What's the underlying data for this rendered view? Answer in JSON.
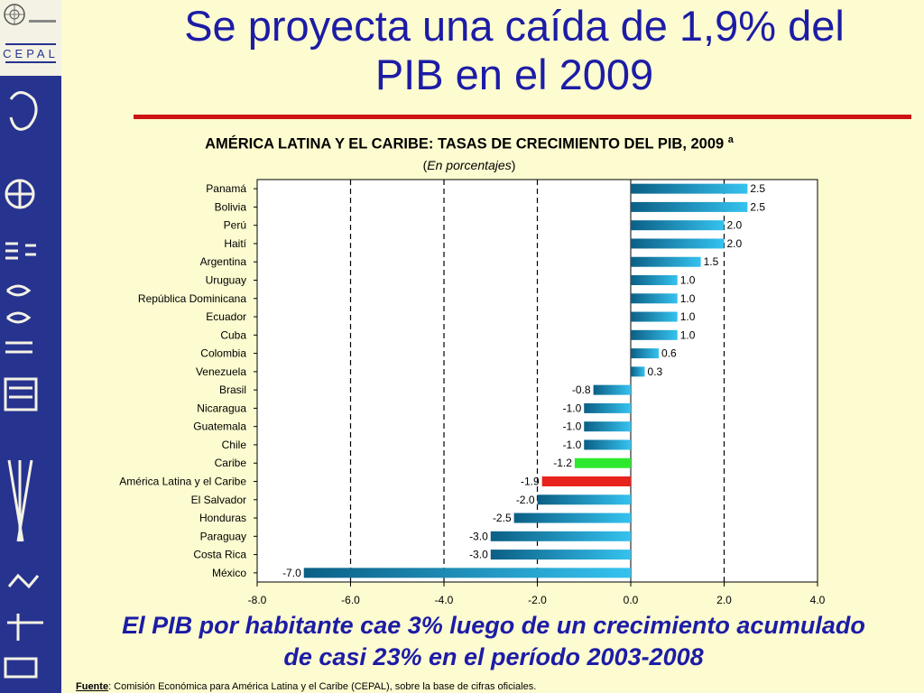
{
  "slide": {
    "title_line1": "Se proyecta una caída de 1,9% del",
    "title_line2": "PIB en el 2009",
    "footer_line1": "El PIB por habitante cae 3% luego de un crecimiento acumulado",
    "footer_line2": "de casi 23% en el período 2003-2008",
    "source_label": "Fuente",
    "source_text": ": Comisión Económica para América Latina y el Caribe (CEPAL), sobre la base de cifras oficiales."
  },
  "colors": {
    "title": "#1c1ca6",
    "rule": "#cc1212",
    "sidebar": "#26338f",
    "bar_dark": "#0b5f85",
    "bar_light": "#35c2ef",
    "bar_caribe": "#2ee82e",
    "bar_region": "#e8221c"
  },
  "chart_data": {
    "type": "bar",
    "orientation": "horizontal",
    "title": "AMÉRICA LATINA Y EL CARIBE: TASAS DE CRECIMIENTO DEL PIB, 2009",
    "title_superscript": "a",
    "subtitle_open": "(",
    "subtitle_italic": "En porcentajes",
    "subtitle_close": ")",
    "categories": [
      "Panamá",
      "Bolivia",
      "Perú",
      "Haití",
      "Argentina",
      "Uruguay",
      "República Dominicana",
      "Ecuador",
      "Cuba",
      "Colombia",
      "Venezuela",
      "Brasil",
      "Nicaragua",
      "Guatemala",
      "Chile",
      "Caribe",
      "América Latina y el Caribe",
      "El Salvador",
      "Honduras",
      "Paraguay",
      "Costa Rica",
      "México"
    ],
    "values": [
      2.5,
      2.5,
      2.0,
      2.0,
      1.5,
      1.0,
      1.0,
      1.0,
      1.0,
      0.6,
      0.3,
      -0.8,
      -1.0,
      -1.0,
      -1.0,
      -1.2,
      -1.9,
      -2.0,
      -2.5,
      -3.0,
      -3.0,
      -7.0
    ],
    "labels": [
      "2.5",
      "2.5",
      "2.0",
      "2.0",
      "1.5",
      "1.0",
      "1.0",
      "1.0",
      "1.0",
      "0.6",
      "0.3",
      "-0.8",
      "-1.0",
      "-1.0",
      "-1.0",
      "-1.2",
      "-1.9",
      "-2.0",
      "-2.5",
      "-3.0",
      "-3.0",
      "-7.0"
    ],
    "highlight": {
      "Caribe": "#2ee82e",
      "América Latina y el Caribe": "#e8221c"
    },
    "xlim": [
      -8.0,
      4.0
    ],
    "xticks": [
      -8.0,
      -6.0,
      -4.0,
      -2.0,
      0.0,
      2.0,
      4.0
    ],
    "xtick_labels": [
      "-8.0",
      "-6.0",
      "-4.0",
      "-2.0",
      "0.0",
      "2.0",
      "4.0"
    ],
    "gridlines_dashed": [
      -6.0,
      -4.0,
      -2.0,
      2.0
    ],
    "grid": true,
    "legend": "none"
  }
}
